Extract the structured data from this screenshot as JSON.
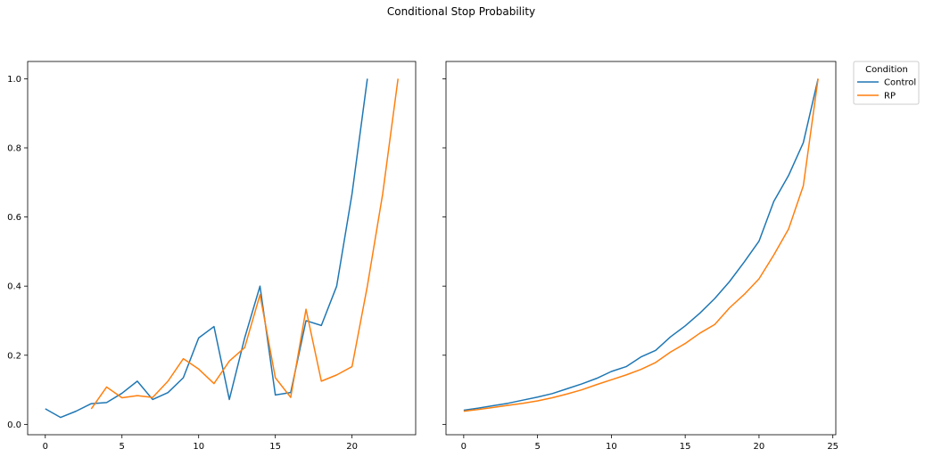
{
  "chart_data": {
    "title": "Conditional Stop Probability",
    "legend": {
      "title": "Condition",
      "placement": "outside-top-right",
      "entries": [
        {
          "label": "Control",
          "color": "#1f77b4"
        },
        {
          "label": "RP",
          "color": "#ff7f0e"
        }
      ]
    },
    "shared_y": true,
    "ylim": [
      -0.03,
      1.05
    ],
    "yticks": [
      0.0,
      0.2,
      0.4,
      0.6,
      0.8,
      1.0
    ],
    "ytick_labels": [
      "0.0",
      "0.2",
      "0.4",
      "0.6",
      "0.8",
      "1.0"
    ],
    "panels": [
      {
        "type": "line",
        "xlim": [
          -1.15,
          24.15
        ],
        "xticks": [
          0,
          5,
          10,
          15,
          20
        ],
        "xtick_labels": [
          "0",
          "5",
          "10",
          "15",
          "20"
        ],
        "grid": false,
        "series": [
          {
            "name": "Control",
            "color": "#1f77b4",
            "x": [
              0,
              1,
              2,
              3,
              4,
              5,
              6,
              7,
              8,
              9,
              10,
              11,
              12,
              13,
              14,
              15,
              16,
              17,
              18,
              19,
              20,
              21
            ],
            "y": [
              0.045,
              0.02,
              0.038,
              0.06,
              0.063,
              0.09,
              0.125,
              0.072,
              0.092,
              0.135,
              0.25,
              0.283,
              0.072,
              0.25,
              0.4,
              0.085,
              0.092,
              0.3,
              0.286,
              0.4,
              0.667,
              1.0
            ]
          },
          {
            "name": "RP",
            "color": "#ff7f0e",
            "x": [
              3,
              4,
              5,
              6,
              7,
              8,
              9,
              10,
              11,
              12,
              13,
              14,
              15,
              16,
              17,
              18,
              19,
              20,
              21,
              22,
              23
            ],
            "y": [
              0.045,
              0.108,
              0.077,
              0.083,
              0.078,
              0.125,
              0.19,
              0.16,
              0.118,
              0.183,
              0.222,
              0.375,
              0.135,
              0.078,
              0.333,
              0.125,
              0.143,
              0.167,
              0.4,
              0.667,
              1.0
            ]
          }
        ]
      },
      {
        "type": "line",
        "xlim": [
          -1.2,
          25.2
        ],
        "xticks": [
          0,
          5,
          10,
          15,
          20,
          25
        ],
        "xtick_labels": [
          "0",
          "5",
          "10",
          "15",
          "20",
          "25"
        ],
        "grid": false,
        "series": [
          {
            "name": "Control",
            "color": "#1f77b4",
            "x": [
              0,
              1,
              2,
              3,
              4,
              5,
              6,
              7,
              8,
              9,
              10,
              11,
              12,
              13,
              14,
              15,
              16,
              17,
              18,
              19,
              20,
              21,
              22,
              23,
              24
            ],
            "y": [
              0.041,
              0.047,
              0.054,
              0.061,
              0.07,
              0.079,
              0.089,
              0.103,
              0.117,
              0.133,
              0.153,
              0.167,
              0.195,
              0.214,
              0.253,
              0.285,
              0.322,
              0.364,
              0.413,
              0.47,
              0.53,
              0.645,
              0.72,
              0.815,
              1.0
            ]
          },
          {
            "name": "RP",
            "color": "#ff7f0e",
            "x": [
              0,
              1,
              2,
              3,
              4,
              5,
              6,
              7,
              8,
              9,
              10,
              11,
              12,
              13,
              14,
              15,
              16,
              17,
              18,
              19,
              20,
              21,
              22,
              23,
              24
            ],
            "y": [
              0.038,
              0.043,
              0.049,
              0.055,
              0.061,
              0.068,
              0.077,
              0.088,
              0.1,
              0.115,
              0.129,
              0.143,
              0.159,
              0.179,
              0.209,
              0.234,
              0.264,
              0.289,
              0.337,
              0.376,
              0.421,
              0.49,
              0.565,
              0.69,
              1.0
            ]
          }
        ]
      }
    ]
  }
}
